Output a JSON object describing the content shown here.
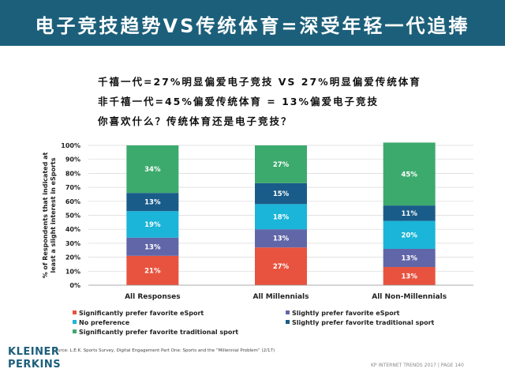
{
  "header": {
    "title": "电子竞技趋势VS传统体育=深受年轻一代追捧"
  },
  "subtitle_lines": [
    "千禧一代=27%明显偏爱电子竞技  VS  27%明显偏爱传统体育",
    "非千禧一代=45%偏爱传统体育  =  13%偏爱电子竞技",
    "你喜欢什么？传统体育还是电子竞技？"
  ],
  "chart_data": {
    "type": "bar",
    "stacked": true,
    "percent": true,
    "ylabel": "% of Respondents that indicated at least a slight interest in eSports",
    "ylim": [
      0,
      100
    ],
    "yticks": [
      "0%",
      "10%",
      "20%",
      "30%",
      "40%",
      "50%",
      "60%",
      "70%",
      "80%",
      "90%",
      "100%"
    ],
    "categories": [
      "All Responses",
      "All Millennials",
      "All Non-Millennials"
    ],
    "series": [
      {
        "name": "Significantly prefer favorite eSport",
        "color": "#e8533f",
        "values": [
          21,
          27,
          13
        ],
        "labels": [
          "21%",
          "27%",
          "13%"
        ]
      },
      {
        "name": "Slightly prefer favorite eSport",
        "color": "#6166a8",
        "values": [
          13,
          13,
          13
        ],
        "labels": [
          "13%",
          "13%",
          "13%"
        ]
      },
      {
        "name": "No preference",
        "color": "#1ab5d8",
        "values": [
          19,
          18,
          20
        ],
        "labels": [
          "19%",
          "18%",
          "20%"
        ]
      },
      {
        "name": "Slightly prefer favorite traditional sport",
        "color": "#1a5c89",
        "values": [
          13,
          15,
          11
        ],
        "labels": [
          "13%",
          "15%",
          "11%"
        ]
      },
      {
        "name": "Significantly prefer favorite traditional sport",
        "color": "#3daa6d",
        "values": [
          34,
          27,
          45
        ],
        "labels": [
          "34%",
          "27%",
          "45%"
        ]
      }
    ]
  },
  "source": "Source: L.E.K. Sports Survey, Digital Engagement Part One: Sports and the “Millennial Problem” (2/17)",
  "logo": {
    "line1": "KLEINER",
    "line2": "PERKINS"
  },
  "footer": "KP INTERNET TRENDS 2017  |  PAGE 140"
}
